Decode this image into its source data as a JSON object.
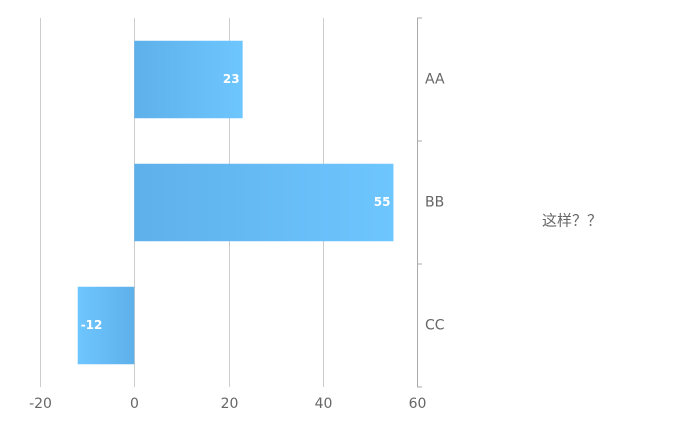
{
  "chart_data": {
    "type": "bar",
    "orientation": "horizontal",
    "category_axis_side": "right",
    "categories": [
      "AA",
      "BB",
      "CC"
    ],
    "values": [
      23,
      55,
      -12
    ],
    "gradient": [
      "#5eb0ea",
      "#6ec6ff"
    ],
    "xlim": [
      -20,
      60
    ],
    "xticks": [
      -20,
      0,
      20,
      40,
      60
    ],
    "grid": true,
    "annotation": "这样？？",
    "annotation_color": "#e53935"
  }
}
